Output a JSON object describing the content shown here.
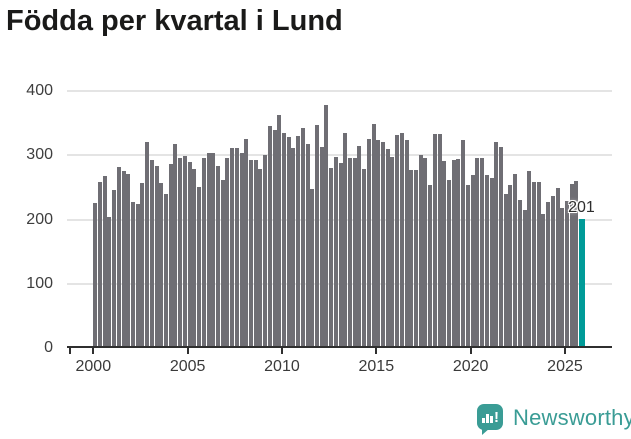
{
  "title": "Födda per kvartal i Lund",
  "chart_data": {
    "type": "bar",
    "title": "Födda per kvartal i Lund",
    "frequency": "quarterly",
    "x_start": "2000 Q1",
    "x_end": "2025 Q4",
    "ylim": [
      0,
      400
    ],
    "yticks": [
      0,
      100,
      200,
      300,
      400
    ],
    "xtick_years": [
      2000,
      2005,
      2010,
      2015,
      2020,
      2025
    ],
    "grid": "horizontal",
    "bar_color": "#6f6e74",
    "highlight_color": "#009b98",
    "highlight_index": 103,
    "highlight_label": "201",
    "values": [
      226,
      258,
      268,
      204,
      246,
      282,
      276,
      271,
      228,
      224,
      257,
      321,
      292,
      284,
      257,
      239,
      286,
      318,
      295,
      299,
      290,
      278,
      251,
      296,
      303,
      303,
      284,
      261,
      296,
      312,
      312,
      303,
      325,
      292,
      292,
      279,
      300,
      346,
      339,
      363,
      335,
      328,
      311,
      330,
      342,
      317,
      248,
      347,
      313,
      378,
      280,
      298,
      288,
      335,
      296,
      296,
      314,
      279,
      326,
      349,
      323,
      321,
      310,
      298,
      332,
      335,
      323,
      277,
      277,
      300,
      296,
      253,
      333,
      333,
      291,
      262,
      292,
      294,
      323,
      253,
      269,
      296,
      296,
      269,
      264,
      320,
      313,
      240,
      254,
      271,
      230,
      215,
      275,
      258,
      258,
      209,
      227,
      237,
      249,
      218,
      229,
      255,
      260,
      201
    ]
  },
  "footer": {
    "brand": "Newsworthy",
    "brand_color": "#3a9c95",
    "logo_icon": "newsworthy-bar-chart-bubble-icon",
    "logo_glyph": "!"
  }
}
